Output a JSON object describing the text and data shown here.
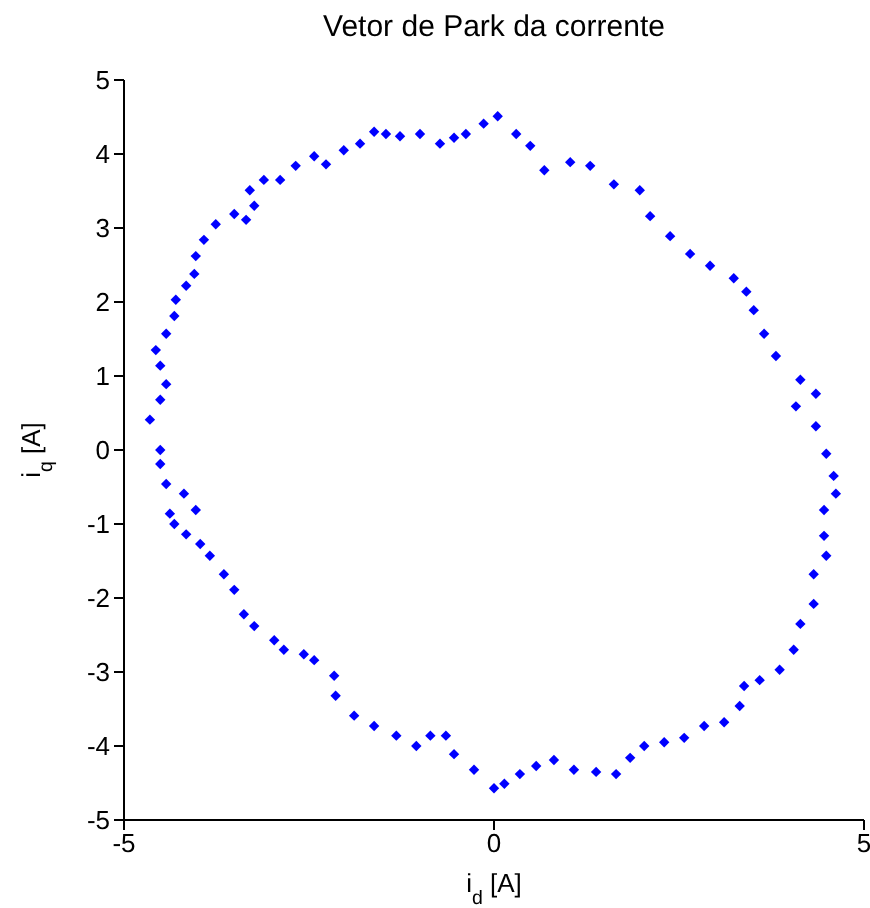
{
  "chart_data": {
    "type": "scatter",
    "title": "Vetor de Park da corrente",
    "xlabel": "i$_{d}$ [A]",
    "ylabel": "i$_{q}$ [A]",
    "xlim": [
      -5,
      5
    ],
    "ylim": [
      -5,
      5
    ],
    "xticks": [
      -5,
      0,
      5
    ],
    "yticks": [
      -5,
      -4,
      -3,
      -2,
      -1,
      0,
      1,
      2,
      3,
      4,
      5
    ],
    "grid": false,
    "legend": false,
    "marker": "diamond",
    "series": [
      {
        "color": "#0000ff",
        "x": [
          0.05,
          0.3,
          0.49,
          0.68,
          1.03,
          1.3,
          1.62,
          1.97,
          2.11,
          2.38,
          2.65,
          2.92,
          3.24,
          3.41,
          3.51,
          3.65,
          3.81,
          4.14,
          4.35,
          4.08,
          4.35,
          4.49,
          4.59,
          4.62,
          4.46,
          4.46,
          4.49,
          4.32,
          4.32,
          4.14,
          4.05,
          3.86,
          3.59,
          3.38,
          3.32,
          3.11,
          2.84,
          2.57,
          2.3,
          2.03,
          1.84,
          1.65,
          1.38,
          1.08,
          0.81,
          0.57,
          0.35,
          0.14,
          0.0,
          -0.27,
          -0.54,
          -0.65,
          -0.86,
          -1.05,
          -1.32,
          -1.62,
          -1.89,
          -2.14,
          -2.16,
          -2.43,
          -2.57,
          -2.84,
          -2.97,
          -3.24,
          -3.38,
          -3.51,
          -3.65,
          -3.84,
          -3.97,
          -4.16,
          -4.32,
          -4.38,
          -4.03,
          -4.19,
          -4.43,
          -4.51,
          -4.51,
          -4.65,
          -4.51,
          -4.43,
          -4.51,
          -4.57,
          -4.43,
          -4.32,
          -4.3,
          -4.16,
          -4.05,
          -4.03,
          -3.92,
          -3.76,
          -3.51,
          -3.35,
          -3.24,
          -3.3,
          -3.11,
          -2.89,
          -2.68,
          -2.43,
          -2.27,
          -2.03,
          -1.81,
          -1.62,
          -1.46,
          -1.27,
          -1.0,
          -0.73,
          -0.54,
          -0.38,
          -0.14
        ],
        "values": [
          4.51,
          4.27,
          4.11,
          3.78,
          3.89,
          3.84,
          3.59,
          3.51,
          3.16,
          2.89,
          2.65,
          2.49,
          2.32,
          2.14,
          1.89,
          1.57,
          1.27,
          0.95,
          0.76,
          0.59,
          0.32,
          -0.05,
          -0.35,
          -0.59,
          -0.81,
          -1.16,
          -1.43,
          -1.68,
          -2.08,
          -2.35,
          -2.7,
          -2.97,
          -3.11,
          -3.19,
          -3.46,
          -3.68,
          -3.73,
          -3.89,
          -3.95,
          -4.0,
          -4.16,
          -4.38,
          -4.35,
          -4.32,
          -4.19,
          -4.27,
          -4.38,
          -4.51,
          -4.57,
          -4.32,
          -4.11,
          -3.86,
          -3.86,
          -4.0,
          -3.86,
          -3.73,
          -3.59,
          -3.32,
          -3.05,
          -2.84,
          -2.76,
          -2.7,
          -2.57,
          -2.38,
          -2.22,
          -1.89,
          -1.68,
          -1.43,
          -1.27,
          -1.14,
          -1.0,
          -0.86,
          -0.81,
          -0.59,
          -0.46,
          -0.19,
          0.0,
          0.41,
          0.68,
          0.89,
          1.14,
          1.35,
          1.57,
          1.81,
          2.03,
          2.22,
          2.38,
          2.62,
          2.84,
          3.05,
          3.19,
          3.11,
          3.3,
          3.51,
          3.65,
          3.65,
          3.84,
          3.97,
          3.86,
          4.05,
          4.14,
          4.3,
          4.27,
          4.24,
          4.27,
          4.14,
          4.22,
          4.27,
          4.41
        ]
      }
    ]
  }
}
